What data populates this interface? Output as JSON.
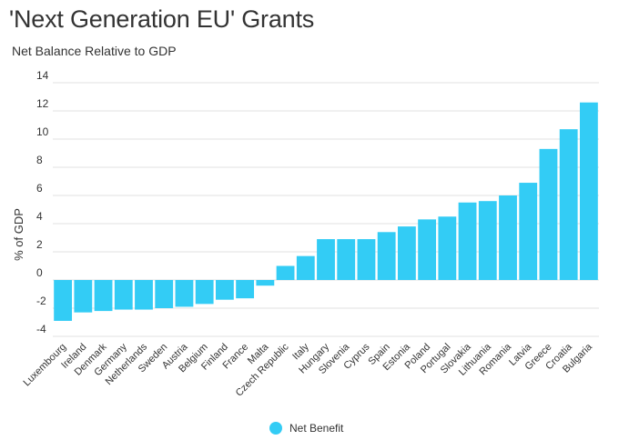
{
  "chart_data": {
    "type": "bar",
    "title": "'Next Generation EU' Grants",
    "subtitle": "Net Balance Relative to GDP",
    "xlabel": "",
    "ylabel": "% of GDP",
    "ylim": [
      -4,
      14
    ],
    "yticks": [
      14,
      12,
      10,
      8,
      6,
      4,
      2,
      0,
      -2,
      -4
    ],
    "grid": true,
    "legend_position": "bottom-center",
    "categories": [
      "Luxembourg",
      "Ireland",
      "Denmark",
      "Germany",
      "Netherlands",
      "Sweden",
      "Austria",
      "Belgium",
      "Finland",
      "France",
      "Malta",
      "Czech Republic",
      "Italy",
      "Hungary",
      "Slovenia",
      "Cyprus",
      "Spain",
      "Estonia",
      "Poland",
      "Portugal",
      "Slovakia",
      "Lithuania",
      "Romania",
      "Latvia",
      "Greece",
      "Croatia",
      "Bulgaria"
    ],
    "series": [
      {
        "name": "Net Benefit",
        "color": "#33ccf5",
        "values": [
          -2.9,
          -2.3,
          -2.2,
          -2.1,
          -2.1,
          -2.0,
          -1.9,
          -1.7,
          -1.4,
          -1.3,
          -0.4,
          1.0,
          1.7,
          2.9,
          2.9,
          2.9,
          3.4,
          3.8,
          4.3,
          4.5,
          5.5,
          5.6,
          6.0,
          6.9,
          9.3,
          10.7,
          12.6
        ]
      }
    ]
  }
}
